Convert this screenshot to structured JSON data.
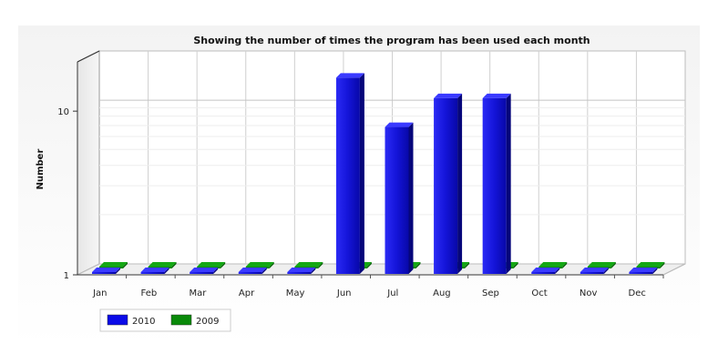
{
  "chart_data": {
    "type": "bar",
    "title": "Showing the number of times the program has been used each month",
    "xlabel": "",
    "ylabel": "Number",
    "y_scale": "log",
    "ylim": [
      1,
      20
    ],
    "y_ticks": [
      "1",
      "10"
    ],
    "categories": [
      "Jan",
      "Feb",
      "Mar",
      "Apr",
      "May",
      "Jun",
      "Jul",
      "Aug",
      "Sep",
      "Oct",
      "Nov",
      "Dec"
    ],
    "series": [
      {
        "name": "2010",
        "color": "#0b0be8",
        "values": [
          1,
          1,
          1,
          1,
          1,
          16,
          8,
          12,
          12,
          1,
          1,
          1
        ]
      },
      {
        "name": "2009",
        "color": "#0a8a0a",
        "values": [
          1,
          1,
          1,
          1,
          1,
          1,
          1,
          1,
          1,
          1,
          1,
          1
        ]
      }
    ],
    "grid": true,
    "legend_position": "bottom-left",
    "style": "3d"
  }
}
